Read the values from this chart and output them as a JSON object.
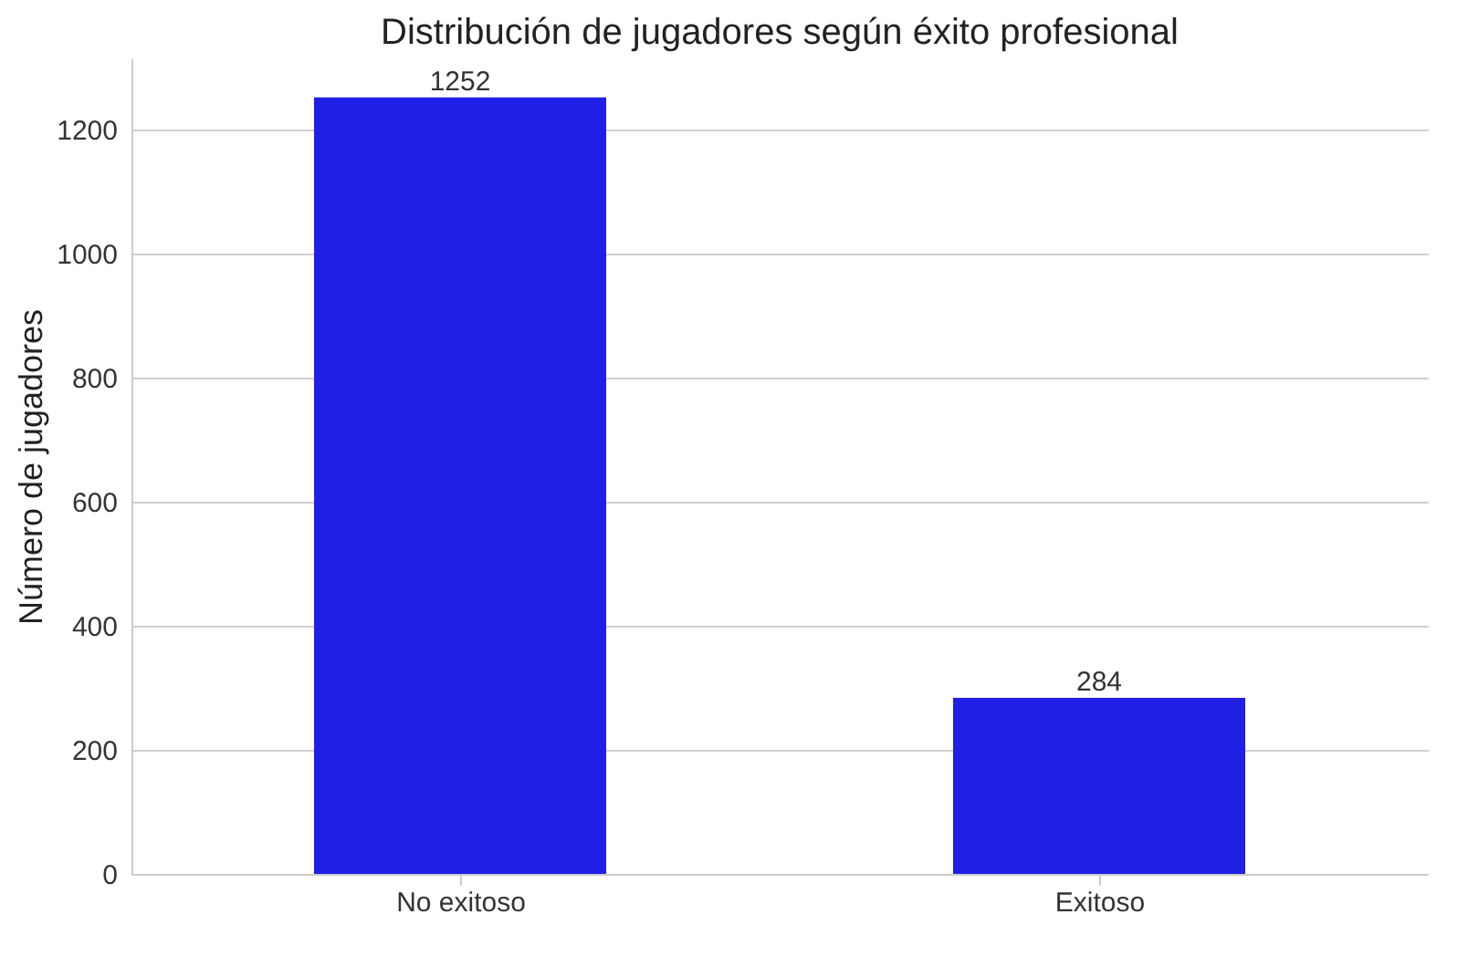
{
  "chart_data": {
    "type": "bar",
    "title": "Distribución de jugadores según éxito profesional",
    "ylabel": "Número de jugadores",
    "categories": [
      "No exitoso",
      "Exitoso"
    ],
    "values": [
      1252,
      284
    ],
    "color": "#1f1fe6",
    "ylim": [
      0,
      1315
    ],
    "yticks": [
      0,
      200,
      400,
      600,
      800,
      1000,
      1200
    ],
    "grid": "y",
    "data_labels": true
  }
}
